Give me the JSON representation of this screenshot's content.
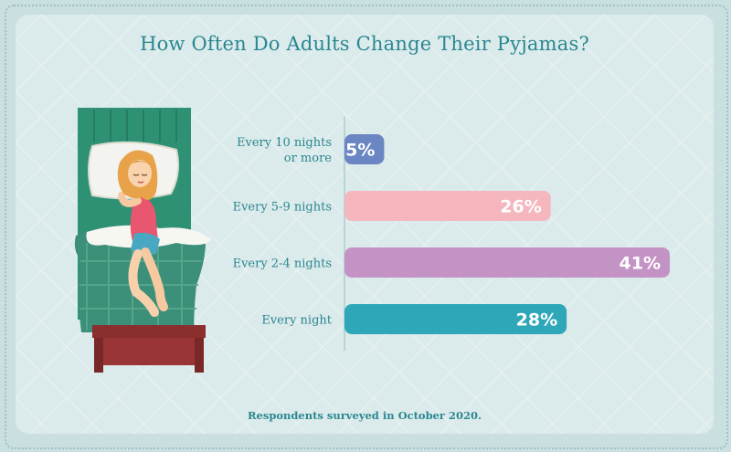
{
  "chart_data": {
    "type": "bar",
    "orientation": "horizontal",
    "title": "How Often Do Adults Change Their Pyjamas?",
    "categories": [
      [
        "Every 10 nights",
        "or more"
      ],
      [
        "Every 5-9 nights"
      ],
      [
        "Every 2-4 nights"
      ],
      [
        "Every night"
      ]
    ],
    "values": [
      5,
      26,
      41,
      28
    ],
    "value_labels": [
      "5%",
      "26%",
      "41%",
      "28%"
    ],
    "colors": [
      "#6a86c3",
      "#f5b6be",
      "#c493c6",
      "#2ea8b8"
    ],
    "xlim": [
      0,
      41
    ],
    "grid": false,
    "legend": "none"
  },
  "footnote": "Respondents surveyed in October 2020.",
  "illustration": {
    "icon": "woman-sleeping-in-bed-icon"
  },
  "colors": {
    "title": "#2a8791",
    "card": "#dbeaea",
    "background": "#c9dfe0"
  }
}
